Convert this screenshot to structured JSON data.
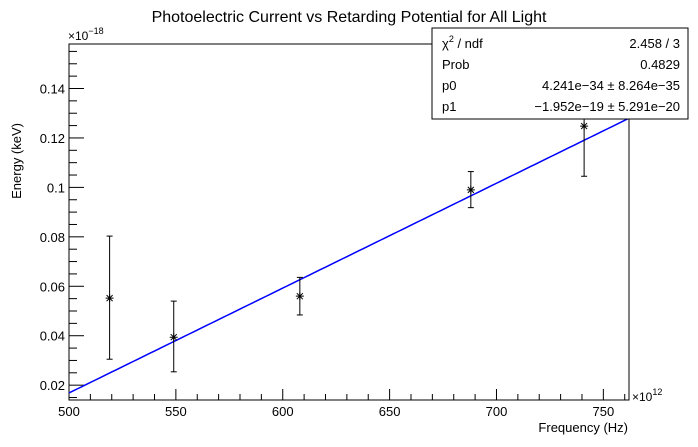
{
  "chart_data": {
    "type": "scatter",
    "title": "Photoelectric Current vs Retarding Potential for All Light",
    "xlabel": "Frequency (Hz)",
    "ylabel": "Energy (keV)",
    "x_multiplier": "×10",
    "x_exponent": "12",
    "y_multiplier": "×10",
    "y_exponent": "−18",
    "xlim": [
      500,
      762
    ],
    "ylim": [
      0.014,
      0.158
    ],
    "x_ticks": [
      500,
      550,
      600,
      650,
      700,
      750
    ],
    "x_tick_labels": [
      "500",
      "550",
      "600",
      "650",
      "700",
      "750"
    ],
    "y_ticks": [
      0.02,
      0.04,
      0.06,
      0.08,
      0.1,
      0.12,
      0.14
    ],
    "y_tick_labels": [
      "0.02",
      "0.04",
      "0.06",
      "0.08",
      "0.1",
      "0.12",
      "0.14"
    ],
    "grid": false,
    "points": [
      {
        "x": 519,
        "y": 0.0552,
        "err_low": 0.0305,
        "err_high": 0.0803
      },
      {
        "x": 549,
        "y": 0.0394,
        "err_low": 0.0254,
        "err_high": 0.054
      },
      {
        "x": 608,
        "y": 0.056,
        "err_low": 0.0484,
        "err_high": 0.0636
      },
      {
        "x": 688,
        "y": 0.099,
        "err_low": 0.0918,
        "err_high": 0.1064
      },
      {
        "x": 741,
        "y": 0.1248,
        "err_low": 0.1045,
        "err_high": 0.1451
      }
    ],
    "fit": {
      "function": "p0*x + p1",
      "p0": 4.241e-34,
      "p1": -1.952e-19,
      "line_color": "#0000ff",
      "x_range": [
        500,
        762
      ]
    },
    "stats_box": {
      "placement": "top-right",
      "rows": [
        {
          "label": "χ² / ndf",
          "value": "2.458 / 3"
        },
        {
          "label": "Prob",
          "value": "0.4829"
        },
        {
          "label": "p0",
          "value": "4.241e−34 ± 8.264e−35"
        },
        {
          "label": "p1",
          "value": "−1.952e−19 ± 5.291e−20"
        }
      ]
    },
    "colors": {
      "points": "#000000",
      "fit": "#0000ff",
      "frame": "#000000"
    }
  }
}
